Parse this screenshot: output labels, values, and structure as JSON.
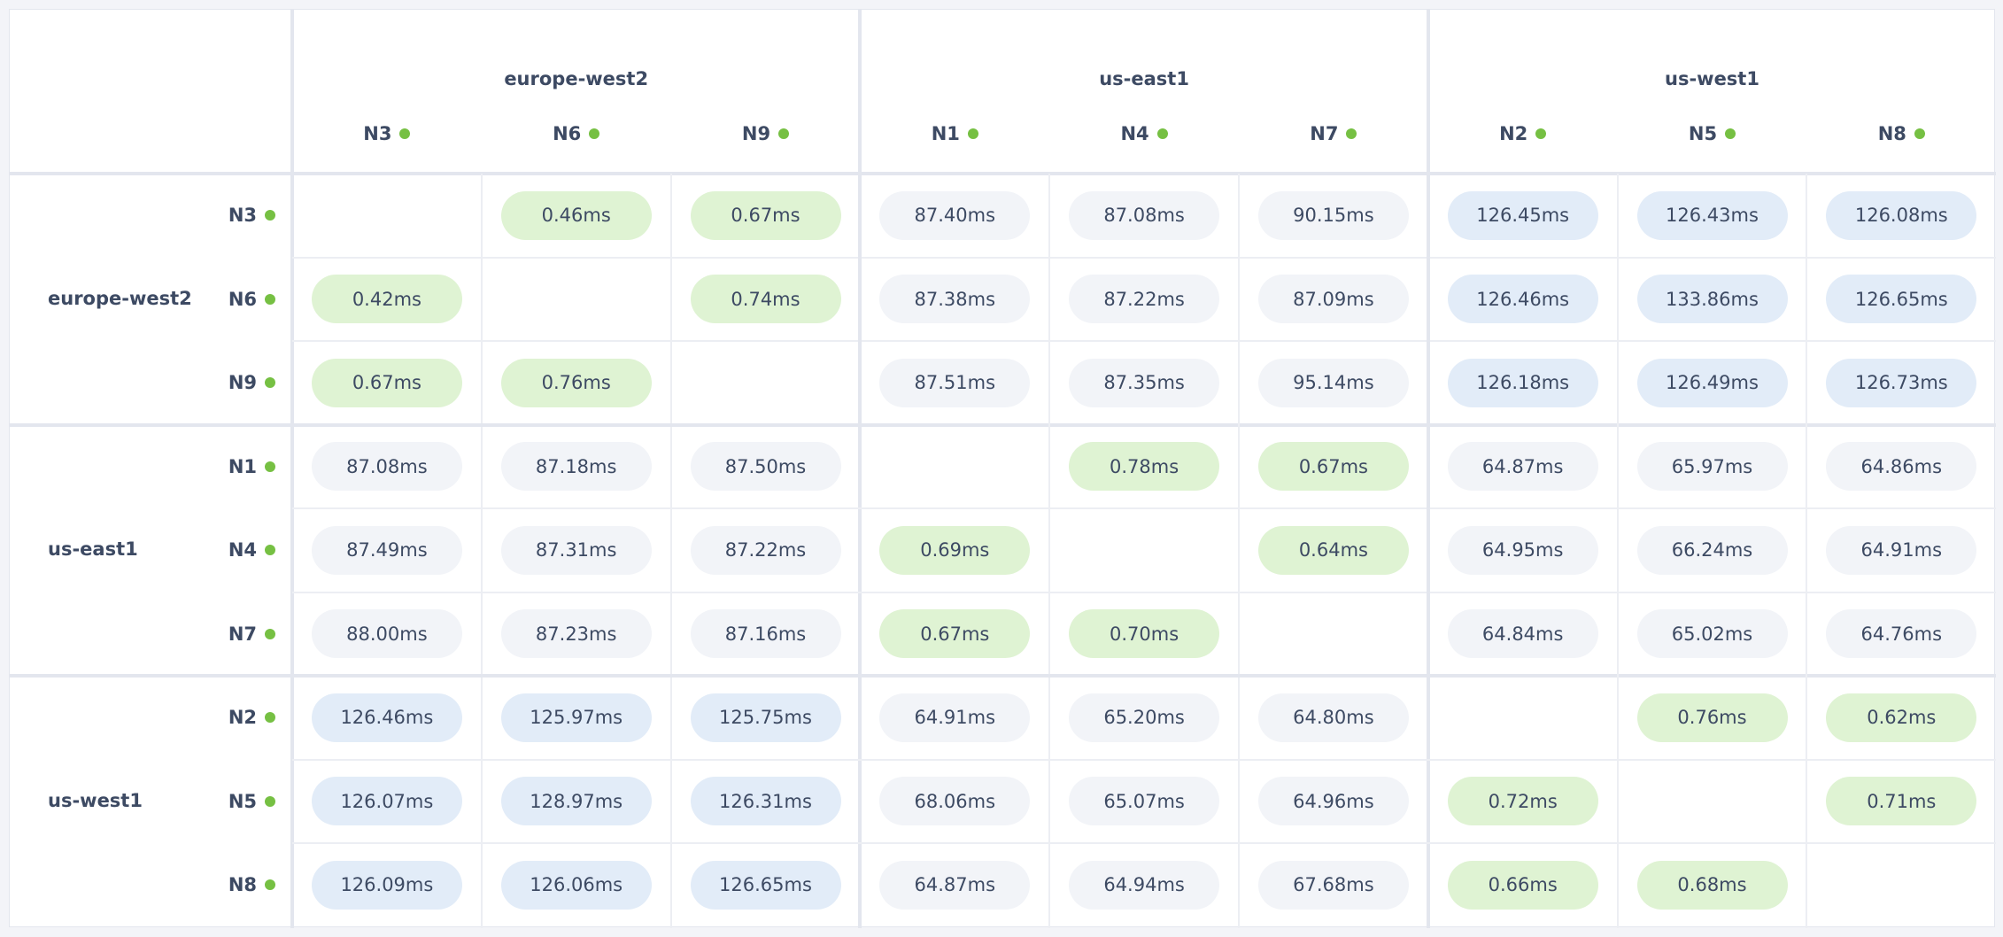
{
  "regions": [
    {
      "name": "europe-west2",
      "nodes": [
        "N3",
        "N6",
        "N9"
      ]
    },
    {
      "name": "us-east1",
      "nodes": [
        "N1",
        "N4",
        "N7"
      ]
    },
    {
      "name": "us-west1",
      "nodes": [
        "N2",
        "N5",
        "N8"
      ]
    }
  ],
  "matrix": [
    [
      null,
      "0.46ms",
      "0.67ms",
      "87.40ms",
      "87.08ms",
      "90.15ms",
      "126.45ms",
      "126.43ms",
      "126.08ms"
    ],
    [
      "0.42ms",
      null,
      "0.74ms",
      "87.38ms",
      "87.22ms",
      "87.09ms",
      "126.46ms",
      "133.86ms",
      "126.65ms"
    ],
    [
      "0.67ms",
      "0.76ms",
      null,
      "87.51ms",
      "87.35ms",
      "95.14ms",
      "126.18ms",
      "126.49ms",
      "126.73ms"
    ],
    [
      "87.08ms",
      "87.18ms",
      "87.50ms",
      null,
      "0.78ms",
      "0.67ms",
      "64.87ms",
      "65.97ms",
      "64.86ms"
    ],
    [
      "87.49ms",
      "87.31ms",
      "87.22ms",
      "0.69ms",
      null,
      "0.64ms",
      "64.95ms",
      "66.24ms",
      "64.91ms"
    ],
    [
      "88.00ms",
      "87.23ms",
      "87.16ms",
      "0.67ms",
      "0.70ms",
      null,
      "64.84ms",
      "65.02ms",
      "64.76ms"
    ],
    [
      "126.46ms",
      "125.97ms",
      "125.75ms",
      "64.91ms",
      "65.20ms",
      "64.80ms",
      null,
      "0.76ms",
      "0.62ms"
    ],
    [
      "126.07ms",
      "128.97ms",
      "126.31ms",
      "68.06ms",
      "65.07ms",
      "64.96ms",
      "0.72ms",
      null,
      "0.71ms"
    ],
    [
      "126.09ms",
      "126.06ms",
      "126.65ms",
      "64.87ms",
      "64.94ms",
      "67.68ms",
      "0.66ms",
      "0.68ms",
      null
    ]
  ]
}
